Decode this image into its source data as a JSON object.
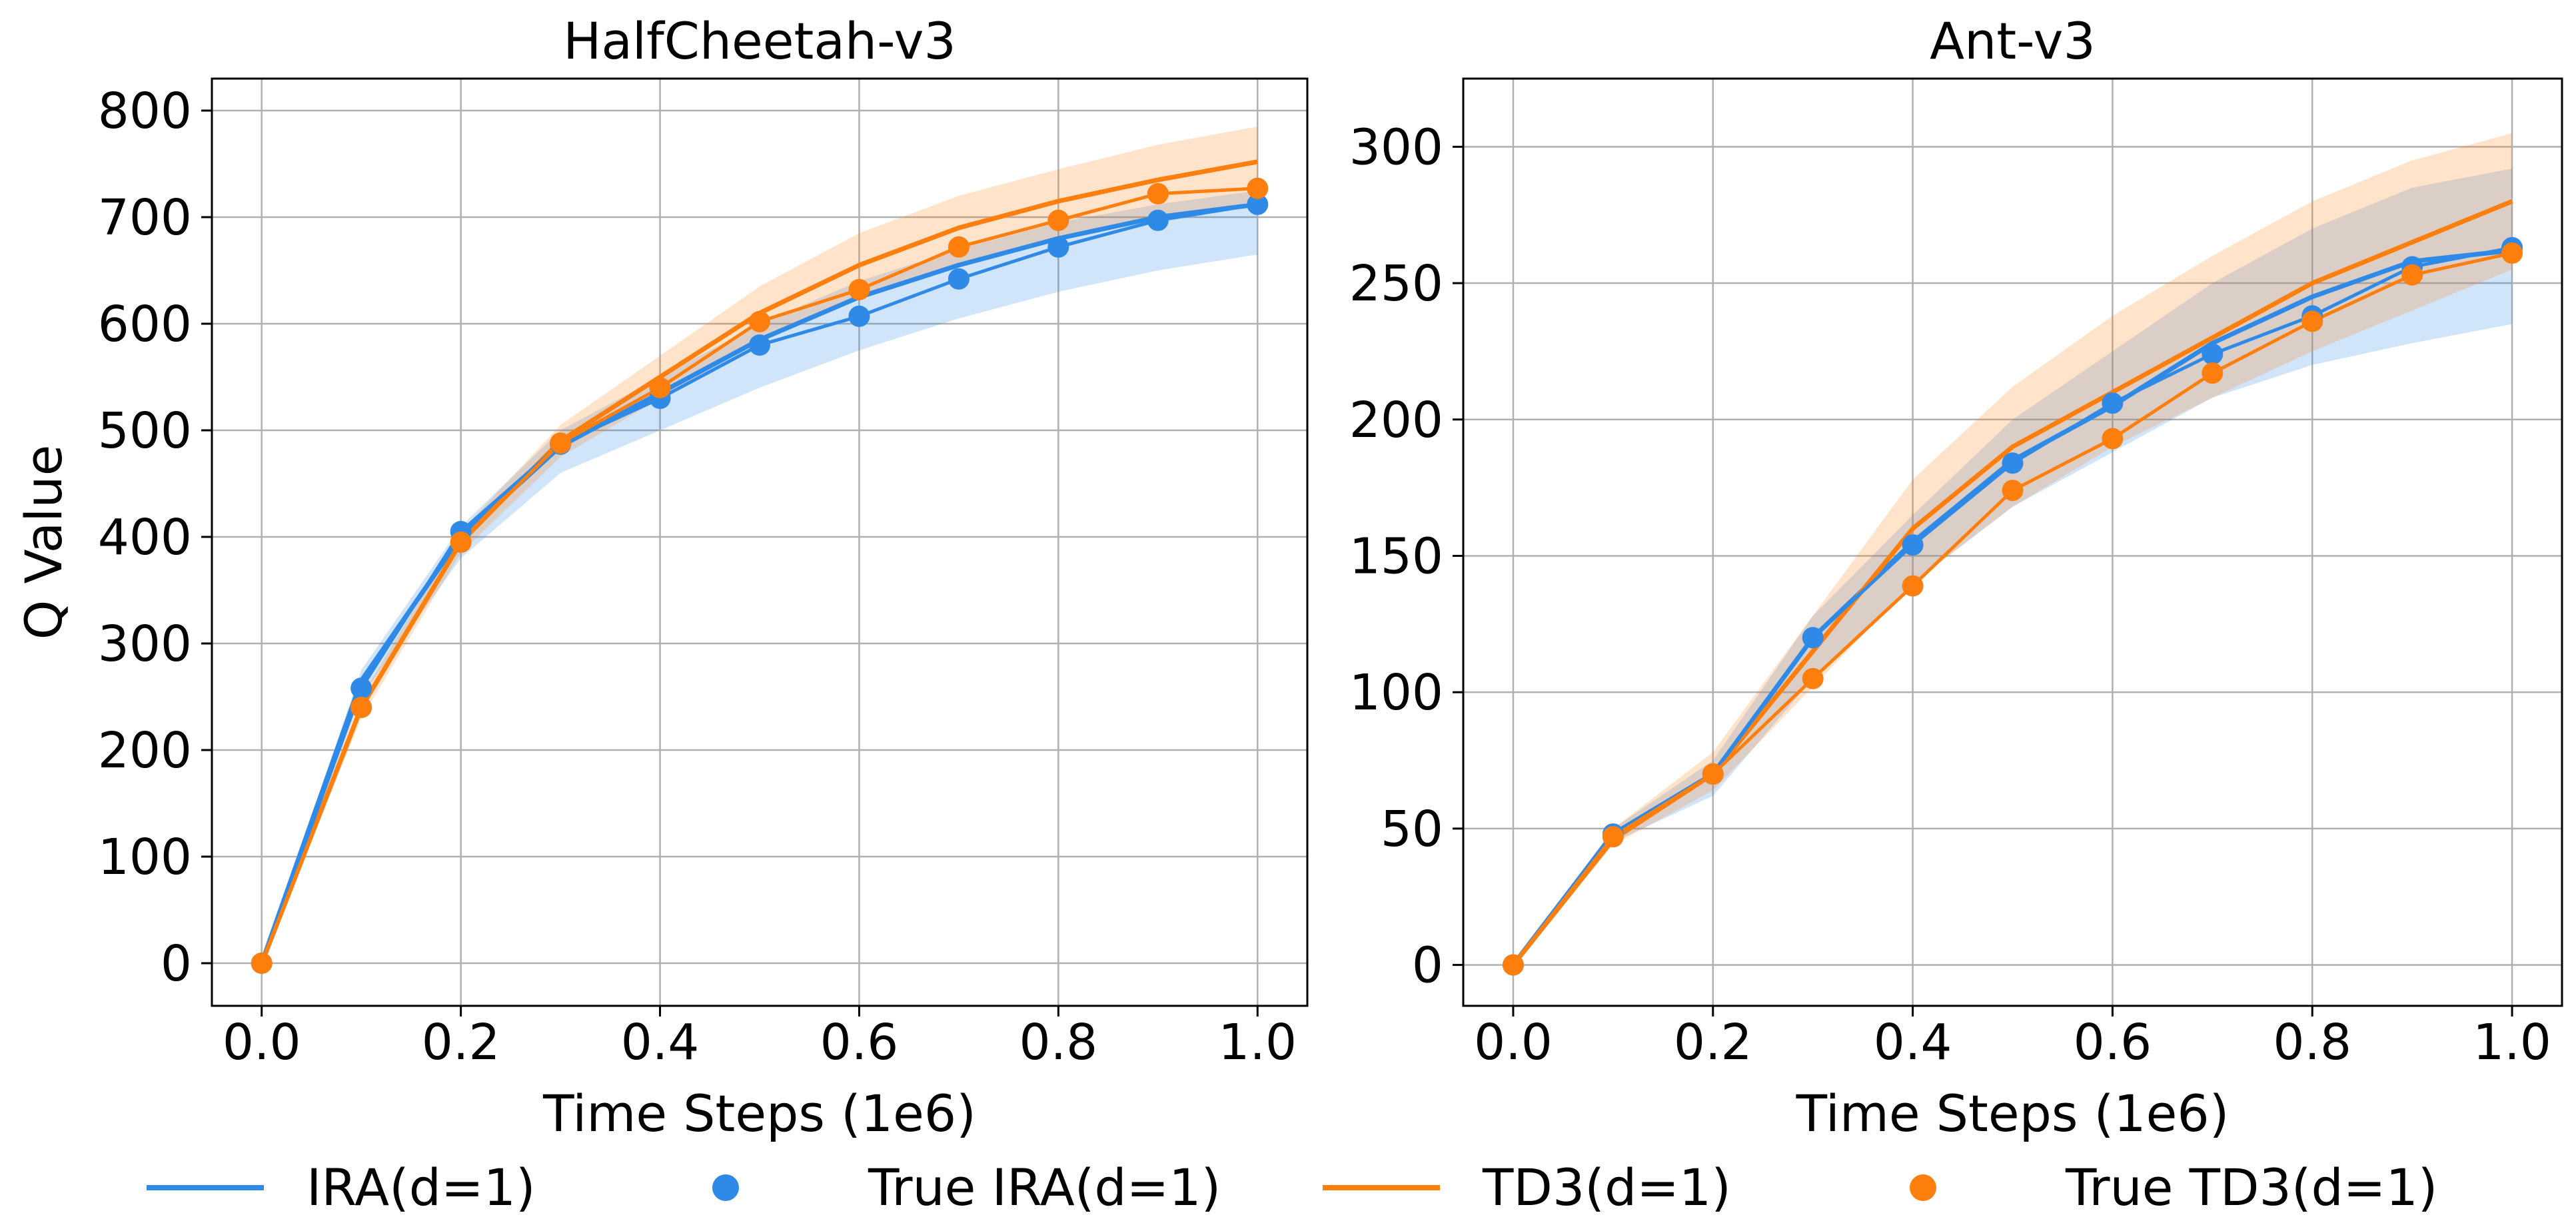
{
  "colors": {
    "ira": "#2e8ae6",
    "td3": "#ff7f0e",
    "grid": "#b0b0b0",
    "axis": "#000000"
  },
  "legend": {
    "placement": "bottom",
    "items": [
      {
        "label": "IRA(d=1)",
        "marker": "line",
        "color": "#2e8ae6"
      },
      {
        "label": "True IRA(d=1)",
        "marker": "dot",
        "color": "#2e8ae6"
      },
      {
        "label": "TD3(d=1)",
        "marker": "line",
        "color": "#ff7f0e"
      },
      {
        "label": "True TD3(d=1)",
        "marker": "dot",
        "color": "#ff7f0e"
      }
    ]
  },
  "chart_data": [
    {
      "type": "line",
      "title": "HalfCheetah-v3",
      "xlabel": "Time Steps (1e6)",
      "ylabel": "Q Value",
      "xlim": [
        -0.05,
        1.05
      ],
      "ylim": [
        -40,
        830
      ],
      "xticks": [
        "0.0",
        "0.2",
        "0.4",
        "0.6",
        "0.8",
        "1.0"
      ],
      "yticks": [
        "0",
        "100",
        "200",
        "300",
        "400",
        "500",
        "600",
        "700",
        "800"
      ],
      "grid": true,
      "x": [
        0.0,
        0.1,
        0.2,
        0.3,
        0.4,
        0.5,
        0.6,
        0.7,
        0.8,
        0.9,
        1.0
      ],
      "series": [
        {
          "name": "IRA(d=1)",
          "kind": "line",
          "color": "#2e8ae6",
          "values": [
            0,
            265,
            400,
            485,
            535,
            585,
            625,
            655,
            680,
            700,
            712
          ],
          "band_low": [
            0,
            250,
            380,
            460,
            500,
            540,
            575,
            605,
            630,
            650,
            665
          ],
          "band_high": [
            0,
            275,
            410,
            500,
            550,
            600,
            640,
            670,
            695,
            712,
            725
          ]
        },
        {
          "name": "True IRA(d=1)",
          "kind": "dots",
          "color": "#2e8ae6",
          "values": [
            0,
            258,
            405,
            487,
            530,
            580,
            607,
            642,
            672,
            697,
            712
          ]
        },
        {
          "name": "TD3(d=1)",
          "kind": "line",
          "color": "#ff7f0e",
          "values": [
            0,
            240,
            395,
            490,
            550,
            610,
            655,
            690,
            715,
            735,
            752
          ],
          "band_low": [
            0,
            230,
            385,
            475,
            530,
            585,
            625,
            655,
            680,
            700,
            715
          ],
          "band_high": [
            0,
            250,
            405,
            505,
            570,
            635,
            685,
            720,
            745,
            768,
            785
          ]
        },
        {
          "name": "True TD3(d=1)",
          "kind": "dots",
          "color": "#ff7f0e",
          "values": [
            0,
            240,
            395,
            488,
            540,
            602,
            632,
            672,
            697,
            722,
            727
          ]
        }
      ]
    },
    {
      "type": "line",
      "title": "Ant-v3",
      "xlabel": "Time Steps (1e6)",
      "ylabel": "",
      "xlim": [
        -0.05,
        1.05
      ],
      "ylim": [
        -15,
        325
      ],
      "xticks": [
        "0.0",
        "0.2",
        "0.4",
        "0.6",
        "0.8",
        "1.0"
      ],
      "yticks": [
        "0",
        "50",
        "100",
        "150",
        "200",
        "250",
        "300"
      ],
      "grid": true,
      "x": [
        0.0,
        0.1,
        0.2,
        0.3,
        0.4,
        0.5,
        0.6,
        0.7,
        0.8,
        0.9,
        1.0
      ],
      "series": [
        {
          "name": "IRA(d=1)",
          "kind": "line",
          "color": "#2e8ae6",
          "values": [
            0,
            48,
            70,
            120,
            155,
            185,
            205,
            228,
            245,
            258,
            262
          ],
          "band_low": [
            0,
            45,
            62,
            105,
            140,
            168,
            188,
            208,
            220,
            228,
            235
          ],
          "band_high": [
            0,
            50,
            75,
            128,
            165,
            200,
            225,
            250,
            270,
            285,
            292
          ]
        },
        {
          "name": "True IRA(d=1)",
          "kind": "dots",
          "color": "#2e8ae6",
          "values": [
            0,
            48,
            70,
            120,
            154,
            184,
            206,
            224,
            238,
            256,
            263
          ]
        },
        {
          "name": "TD3(d=1)",
          "kind": "line",
          "color": "#ff7f0e",
          "values": [
            0,
            46,
            70,
            115,
            160,
            190,
            210,
            230,
            250,
            265,
            280
          ],
          "band_low": [
            0,
            44,
            64,
            102,
            140,
            168,
            190,
            208,
            225,
            240,
            255
          ],
          "band_high": [
            0,
            50,
            78,
            128,
            178,
            212,
            238,
            260,
            280,
            295,
            305
          ]
        },
        {
          "name": "True TD3(d=1)",
          "kind": "dots",
          "color": "#ff7f0e",
          "values": [
            0,
            47,
            70,
            105,
            139,
            174,
            193,
            217,
            236,
            253,
            261
          ]
        }
      ]
    }
  ]
}
